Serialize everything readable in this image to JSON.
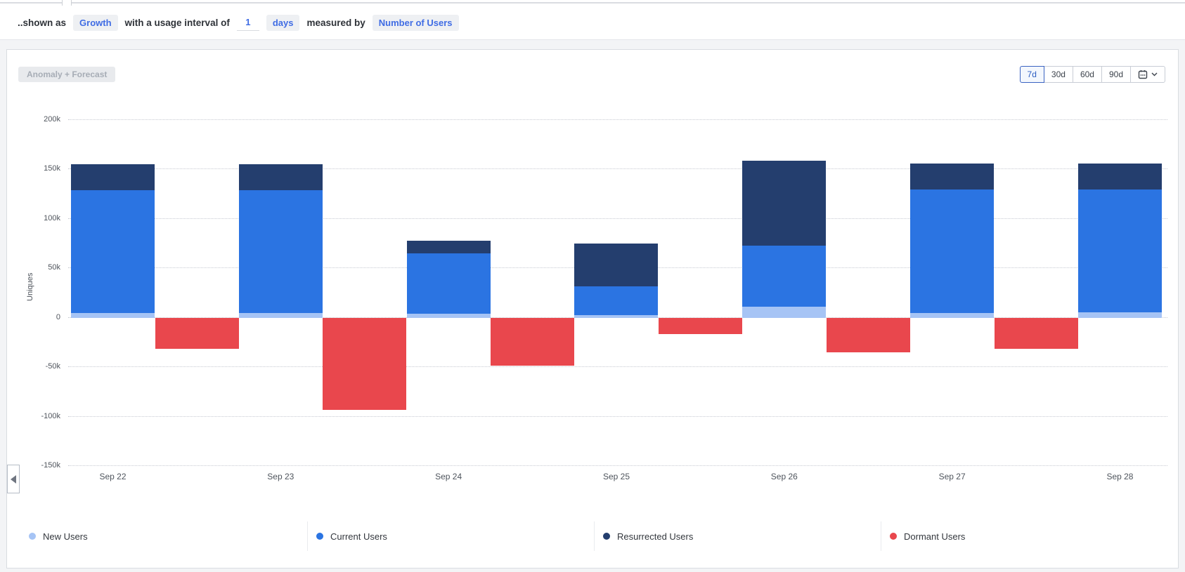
{
  "toolbar": {
    "prefix": "..shown as",
    "metric_pill": "Growth",
    "interval_text": "with a usage interval of",
    "interval_value": "1",
    "interval_unit_pill": "days",
    "measured_text": "measured by",
    "measure_pill": "Number of Users"
  },
  "chart_card": {
    "anomaly_button_label": "Anomaly + Forecast",
    "range_buttons": [
      {
        "label": "7d",
        "selected": true
      },
      {
        "label": "30d",
        "selected": false
      },
      {
        "label": "60d",
        "selected": false
      },
      {
        "label": "90d",
        "selected": false
      }
    ],
    "calendar_button_icons": [
      "calendar-icon",
      "chevron-down-icon"
    ]
  },
  "chart_data": {
    "type": "bar",
    "stacked": true,
    "title": "",
    "xlabel": "",
    "ylabel": "Uniques",
    "categories": [
      "Sep 22",
      "Sep 23",
      "Sep 24",
      "Sep 25",
      "Sep 26",
      "Sep 27",
      "Sep 28"
    ],
    "values_unit": "thousands of users",
    "unit_multiplier": 1000,
    "series": [
      {
        "name": "New Users",
        "color": "#a6c4f5",
        "values": [
          5,
          5,
          4,
          3,
          11,
          5,
          6
        ]
      },
      {
        "name": "Current Users",
        "color": "#2b74e2",
        "values": [
          124,
          124,
          61,
          29,
          62,
          125,
          124
        ]
      },
      {
        "name": "Resurrected Users",
        "color": "#243e6e",
        "values": [
          26,
          26,
          13,
          43,
          86,
          26,
          26
        ]
      },
      {
        "name": "Dormant Users",
        "color": "#e9474d",
        "values": [
          -31,
          -93,
          -48,
          -16,
          -35,
          -31,
          null
        ]
      }
    ],
    "y_ticks": [
      {
        "label": "200k",
        "value": 200
      },
      {
        "label": "150k",
        "value": 150
      },
      {
        "label": "100k",
        "value": 100
      },
      {
        "label": "50k",
        "value": 50
      },
      {
        "label": "0",
        "value": 0
      },
      {
        "label": "-50k",
        "value": -50
      },
      {
        "label": "-100k",
        "value": -100
      },
      {
        "label": "-150k",
        "value": -150
      }
    ],
    "ylim": [
      -150,
      200
    ],
    "grid": "horizontal-dotted",
    "legend_position": "bottom",
    "notes": "Positive stack (New+Current+Resurrected) sits on the date tick; Dormant (negative, red) bar is offset to the right of each positive bar. No Dormant bar visible after Sep 28."
  }
}
